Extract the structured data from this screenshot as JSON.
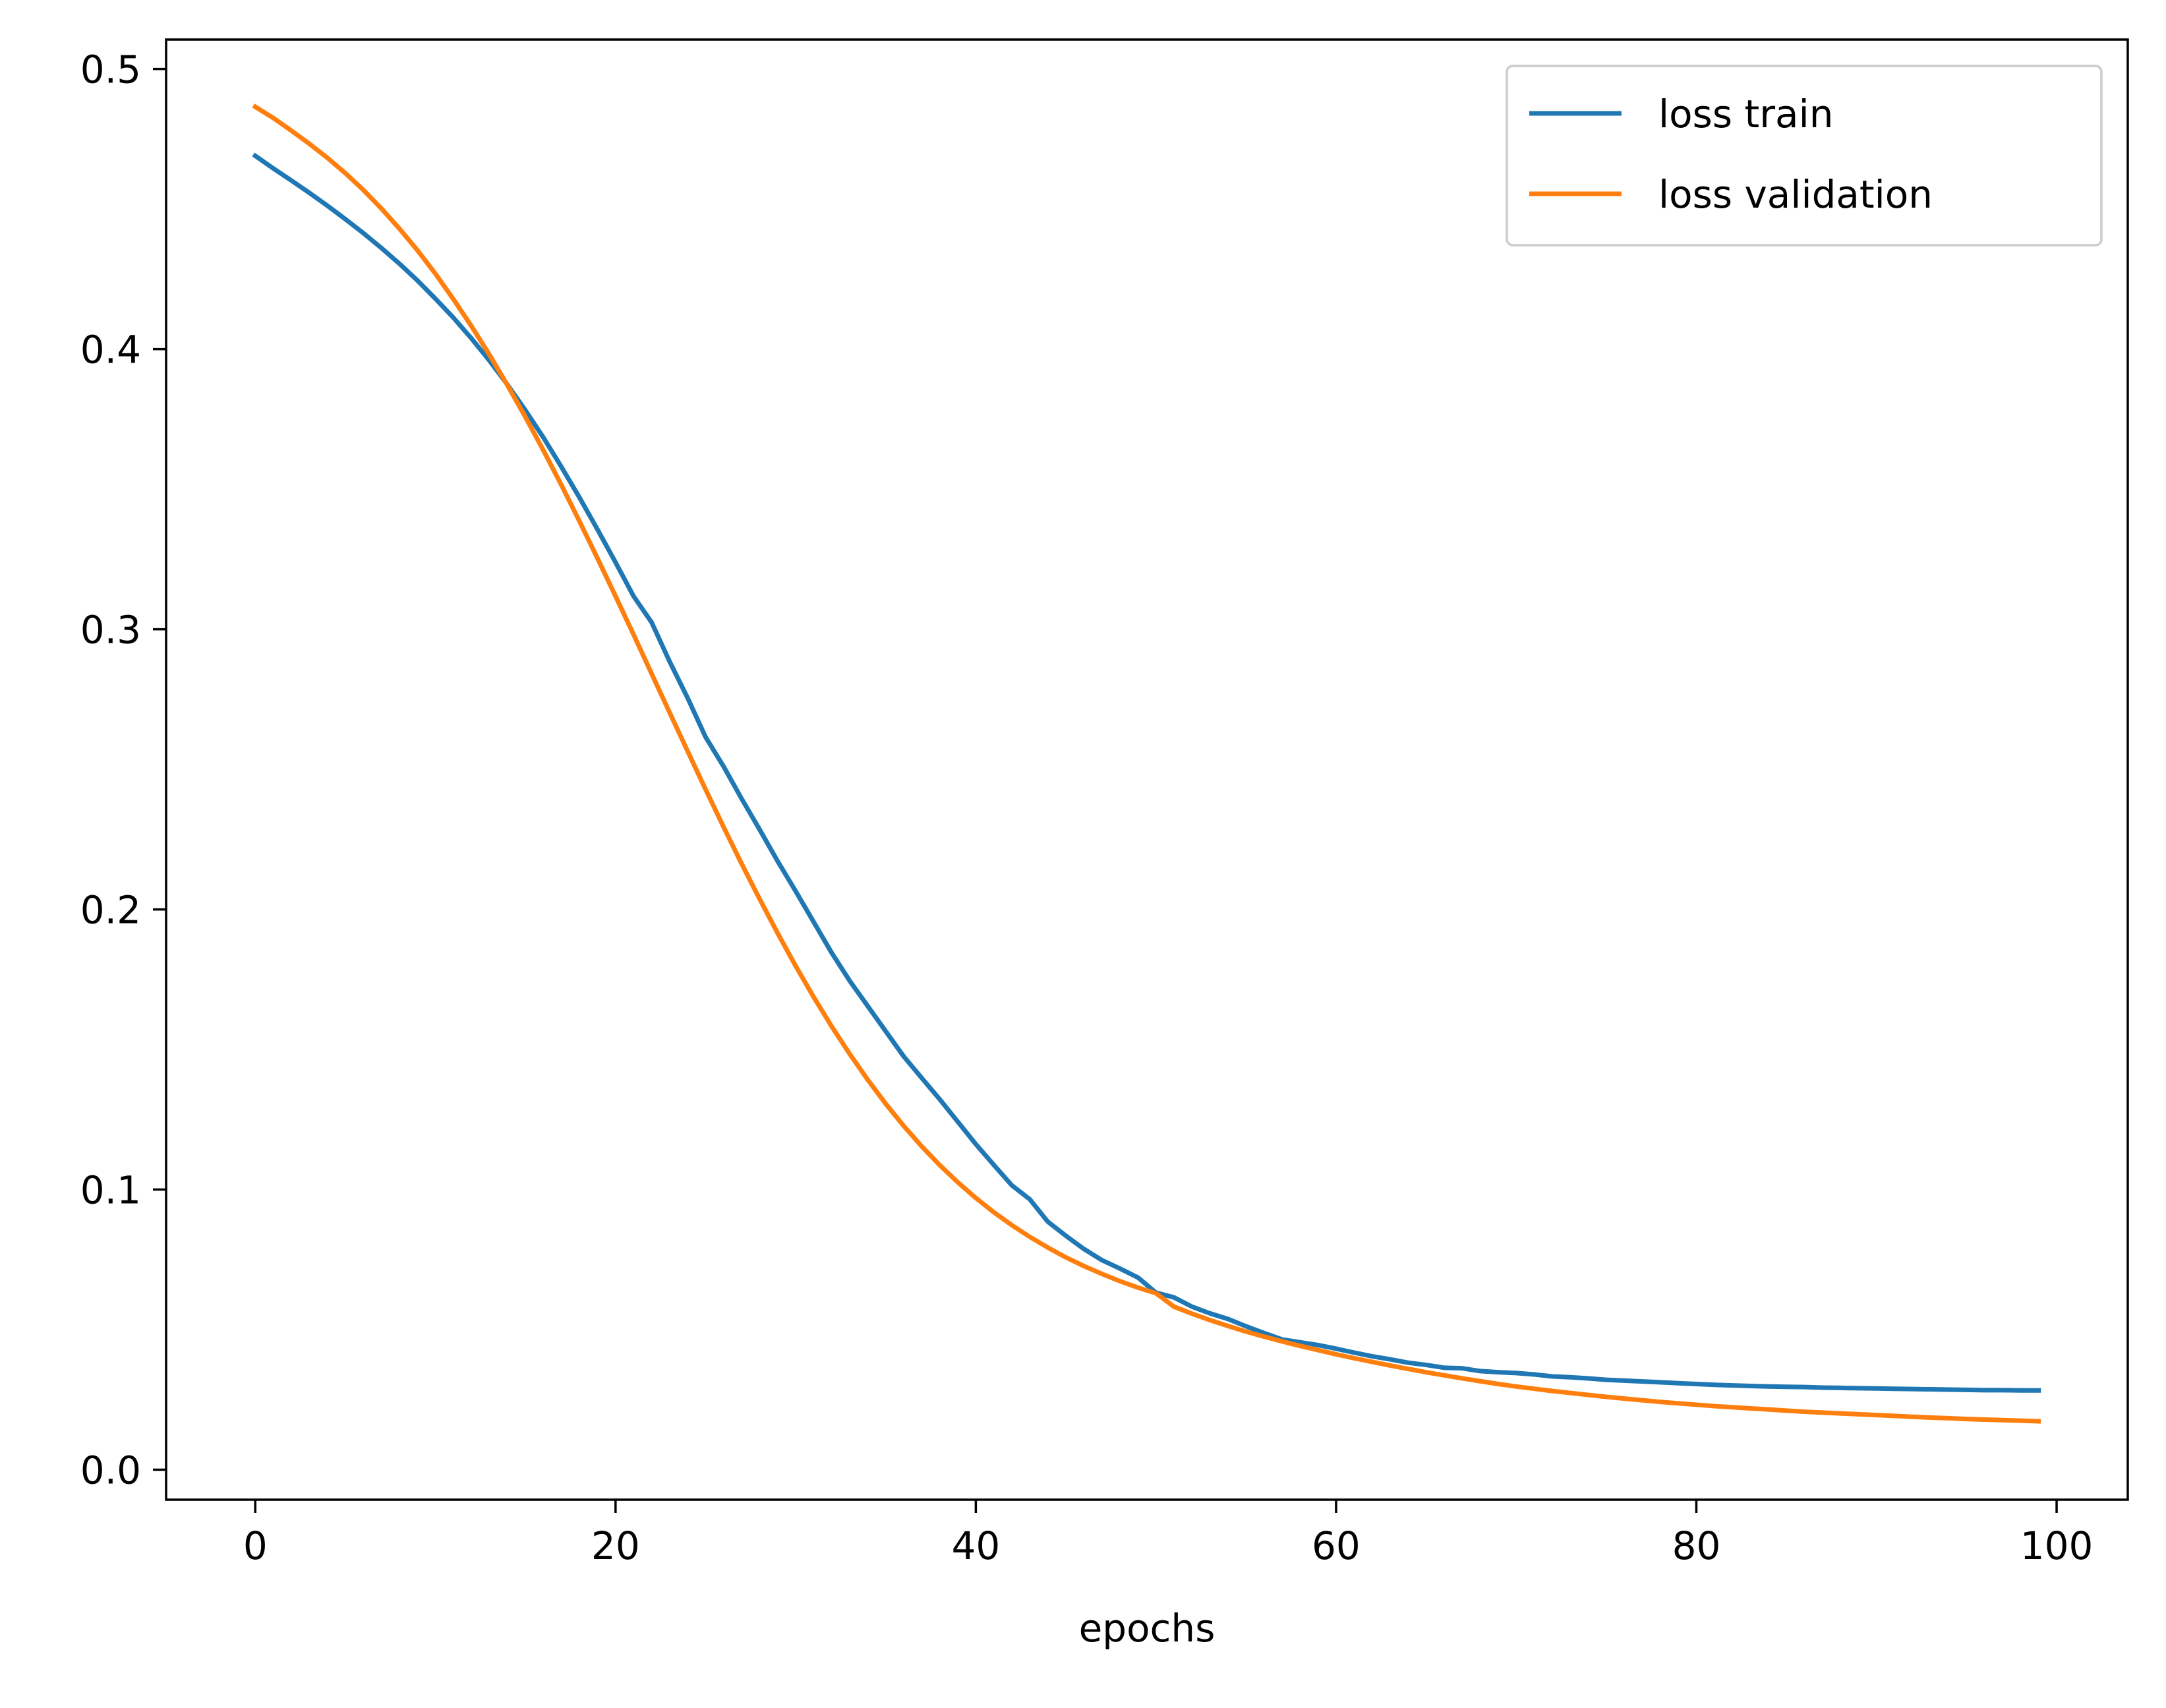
{
  "chart_data": {
    "type": "line",
    "title": "",
    "xlabel": "epochs",
    "ylabel": "",
    "xlim": [
      -4.95,
      103.95
    ],
    "ylim": [
      -0.0107,
      0.5105
    ],
    "xticks": [
      0,
      20,
      40,
      60,
      80,
      100
    ],
    "xtick_labels": [
      "0",
      "20",
      "40",
      "60",
      "80",
      "100"
    ],
    "yticks": [
      0.0,
      0.1,
      0.2,
      0.3,
      0.4,
      0.5
    ],
    "ytick_labels": [
      "0.0",
      "0.1",
      "0.2",
      "0.3",
      "0.4",
      "0.5"
    ],
    "grid": false,
    "legend_position": "upper right",
    "series": [
      {
        "name": "loss train",
        "color": "#1f77b4",
        "x": [
          0,
          1,
          2,
          3,
          4,
          5,
          6,
          7,
          8,
          9,
          10,
          11,
          12,
          13,
          14,
          15,
          16,
          17,
          18,
          19,
          20,
          21,
          22,
          23,
          24,
          25,
          26,
          27,
          28,
          29,
          30,
          31,
          32,
          33,
          34,
          35,
          36,
          37,
          38,
          39,
          40,
          41,
          42,
          43,
          44,
          45,
          46,
          47,
          48,
          49,
          50,
          51,
          52,
          53,
          54,
          55,
          56,
          57,
          58,
          59,
          60,
          61,
          62,
          63,
          64,
          65,
          66,
          67,
          68,
          69,
          70,
          71,
          72,
          73,
          74,
          75,
          76,
          77,
          78,
          79,
          80,
          81,
          82,
          83,
          84,
          85,
          86,
          87,
          88,
          89,
          90,
          91,
          92,
          93,
          94,
          95,
          96,
          97,
          98,
          99
        ],
        "y": [
          0.469,
          0.4645,
          0.4602,
          0.4558,
          0.4512,
          0.4464,
          0.4414,
          0.4361,
          0.4305,
          0.4245,
          0.418,
          0.4112,
          0.4038,
          0.3959,
          0.3873,
          0.3781,
          0.3684,
          0.3579,
          0.347,
          0.3356,
          0.3239,
          0.3118,
          0.3025,
          0.2885,
          0.2755,
          0.2615,
          0.251,
          0.2395,
          0.2285,
          0.2172,
          0.2065,
          0.1955,
          0.1845,
          0.1745,
          0.1655,
          0.1565,
          0.1475,
          0.1398,
          0.1322,
          0.1242,
          0.1162,
          0.1088,
          0.1015,
          0.0965,
          0.0885,
          0.0835,
          0.0788,
          0.0748,
          0.0718,
          0.0686,
          0.0632,
          0.0615,
          0.0582,
          0.0558,
          0.0538,
          0.0512,
          0.0488,
          0.0465,
          0.0455,
          0.0445,
          0.0432,
          0.0418,
          0.0405,
          0.0394,
          0.0382,
          0.0374,
          0.0364,
          0.0362,
          0.0352,
          0.0348,
          0.0345,
          0.034,
          0.0333,
          0.033,
          0.0326,
          0.0321,
          0.0318,
          0.0315,
          0.0312,
          0.0309,
          0.0306,
          0.0303,
          0.0301,
          0.0299,
          0.0297,
          0.0296,
          0.0295,
          0.0293,
          0.0292,
          0.0291,
          0.029,
          0.0289,
          0.0288,
          0.0287,
          0.0286,
          0.0285,
          0.0284,
          0.0284,
          0.0283,
          0.0283
        ]
      },
      {
        "name": "loss validation",
        "color": "#ff7f0e",
        "x": [
          0,
          1,
          2,
          3,
          4,
          5,
          6,
          7,
          8,
          9,
          10,
          11,
          12,
          13,
          14,
          15,
          16,
          17,
          18,
          19,
          20,
          21,
          22,
          23,
          24,
          25,
          26,
          27,
          28,
          29,
          30,
          31,
          32,
          33,
          34,
          35,
          36,
          37,
          38,
          39,
          40,
          41,
          42,
          43,
          44,
          45,
          46,
          47,
          48,
          49,
          50,
          51,
          52,
          53,
          54,
          55,
          56,
          57,
          58,
          59,
          60,
          61,
          62,
          63,
          64,
          65,
          66,
          67,
          68,
          69,
          70,
          71,
          72,
          73,
          74,
          75,
          76,
          77,
          78,
          79,
          80,
          81,
          82,
          83,
          84,
          85,
          86,
          87,
          88,
          89,
          90,
          91,
          92,
          93,
          94,
          95,
          96,
          97,
          98,
          99
        ],
        "y": [
          0.4865,
          0.4825,
          0.478,
          0.4733,
          0.4683,
          0.4628,
          0.4568,
          0.4502,
          0.443,
          0.4353,
          0.4269,
          0.4178,
          0.4082,
          0.398,
          0.3871,
          0.3757,
          0.3638,
          0.3514,
          0.3385,
          0.3253,
          0.3118,
          0.2981,
          0.2842,
          0.2703,
          0.2565,
          0.2428,
          0.2294,
          0.2163,
          0.2037,
          0.1915,
          0.1798,
          0.1687,
          0.1582,
          0.1484,
          0.1392,
          0.1306,
          0.1227,
          0.1154,
          0.1087,
          0.1026,
          0.097,
          0.0919,
          0.0873,
          0.0831,
          0.0793,
          0.0758,
          0.0727,
          0.0699,
          0.0673,
          0.065,
          0.063,
          0.0582,
          0.0557,
          0.0534,
          0.0513,
          0.0493,
          0.0475,
          0.0458,
          0.0442,
          0.0427,
          0.0412,
          0.0398,
          0.0385,
          0.0372,
          0.036,
          0.0348,
          0.0337,
          0.0326,
          0.0316,
          0.0306,
          0.0297,
          0.0289,
          0.0281,
          0.0274,
          0.0267,
          0.026,
          0.0254,
          0.0248,
          0.0242,
          0.0237,
          0.0232,
          0.0227,
          0.0223,
          0.0219,
          0.0215,
          0.0211,
          0.0207,
          0.0204,
          0.0201,
          0.0198,
          0.0195,
          0.0192,
          0.0189,
          0.0186,
          0.0184,
          0.0181,
          0.0179,
          0.0177,
          0.0175,
          0.0173
        ]
      }
    ]
  }
}
